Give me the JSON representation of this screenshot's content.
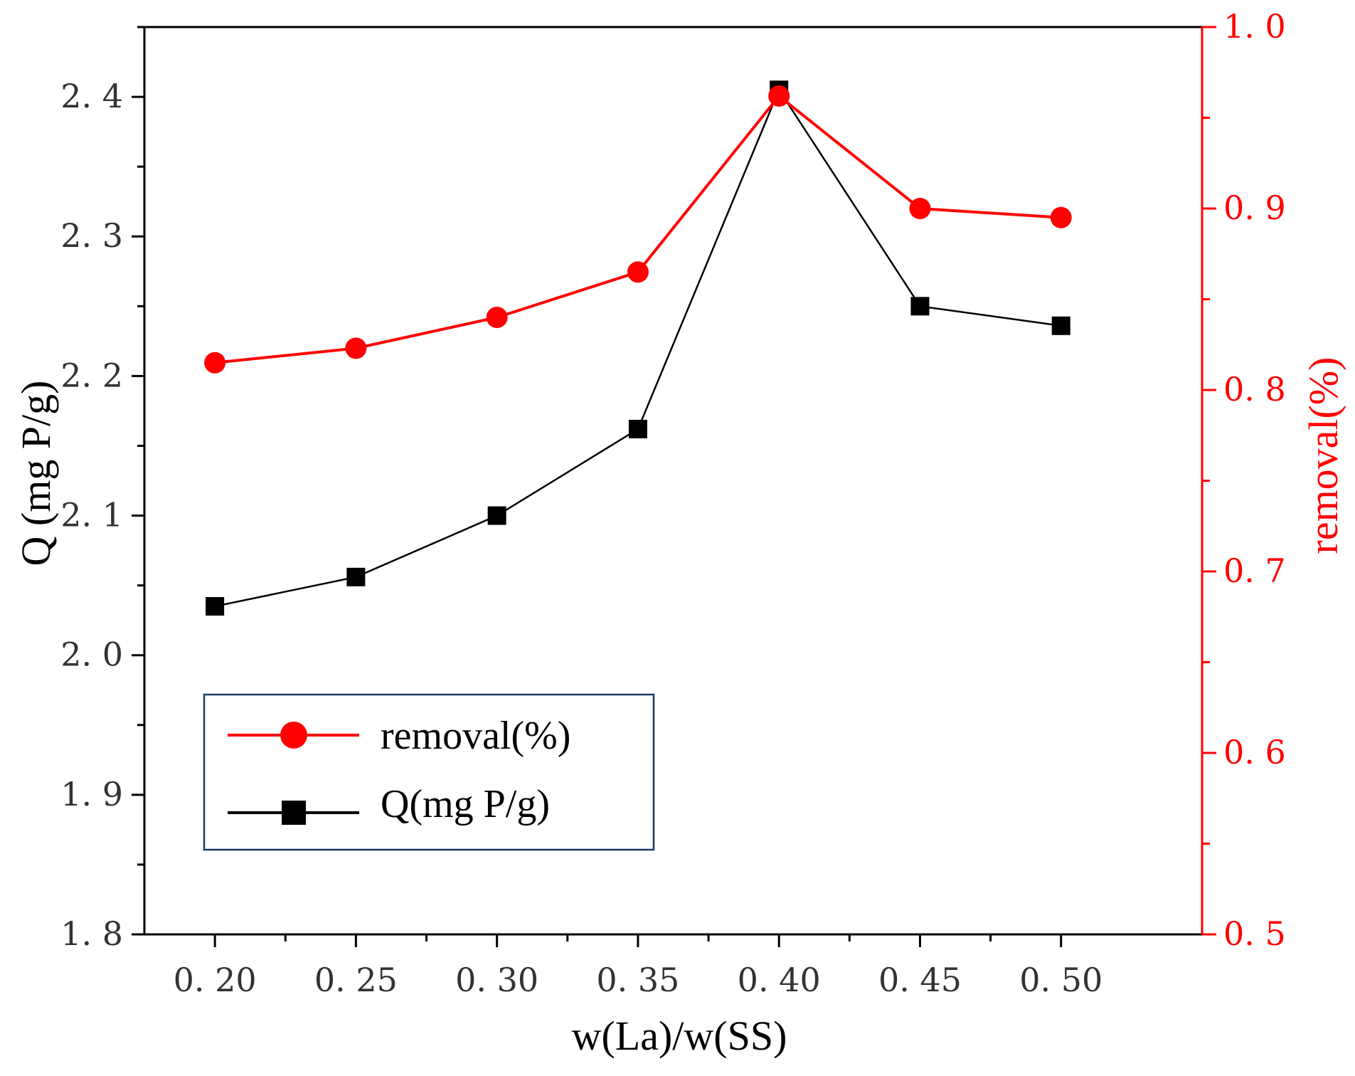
{
  "chart_data": {
    "type": "line",
    "xlabel": "w(La)/w(SS)",
    "ylabel_left": "Q (mg P/g)",
    "ylabel_right": "removal(%)",
    "x": [
      0.2,
      0.25,
      0.3,
      0.35,
      0.4,
      0.45,
      0.5
    ],
    "x_tick_labels": [
      "0. 20",
      "0. 25",
      "0. 30",
      "0. 35",
      "0. 40",
      "0. 45",
      "0. 50"
    ],
    "xlim": [
      0.175,
      0.55
    ],
    "ylim_left": [
      1.8,
      2.45
    ],
    "y_tick_labels_left": [
      "1. 8",
      "1. 9",
      "2. 0",
      "2. 1",
      "2. 2",
      "2. 3",
      "2. 4"
    ],
    "y_ticks_left": [
      1.8,
      1.9,
      2.0,
      2.1,
      2.2,
      2.3,
      2.4
    ],
    "ylim_right": [
      0.5,
      1.0
    ],
    "y_tick_labels_right": [
      "0. 5",
      "0. 6",
      "0. 7",
      "0. 8",
      "0. 9",
      "1. 0"
    ],
    "y_ticks_right": [
      0.5,
      0.6,
      0.7,
      0.8,
      0.9,
      1.0
    ],
    "series": [
      {
        "name": "removal(%)",
        "axis": "right",
        "color": "#ff0000",
        "marker": "circle",
        "values": [
          0.815,
          0.823,
          0.84,
          0.865,
          0.962,
          0.9,
          0.895
        ]
      },
      {
        "name": "Q(mg P/g)",
        "axis": "left",
        "color": "#000000",
        "marker": "square",
        "values": [
          2.035,
          2.056,
          2.1,
          2.162,
          2.405,
          2.25,
          2.236
        ]
      }
    ],
    "legend": {
      "position": "bottom-left",
      "border_color": "#1f3864",
      "entries": [
        "removal(%)",
        "Q(mg P/g)"
      ]
    }
  }
}
